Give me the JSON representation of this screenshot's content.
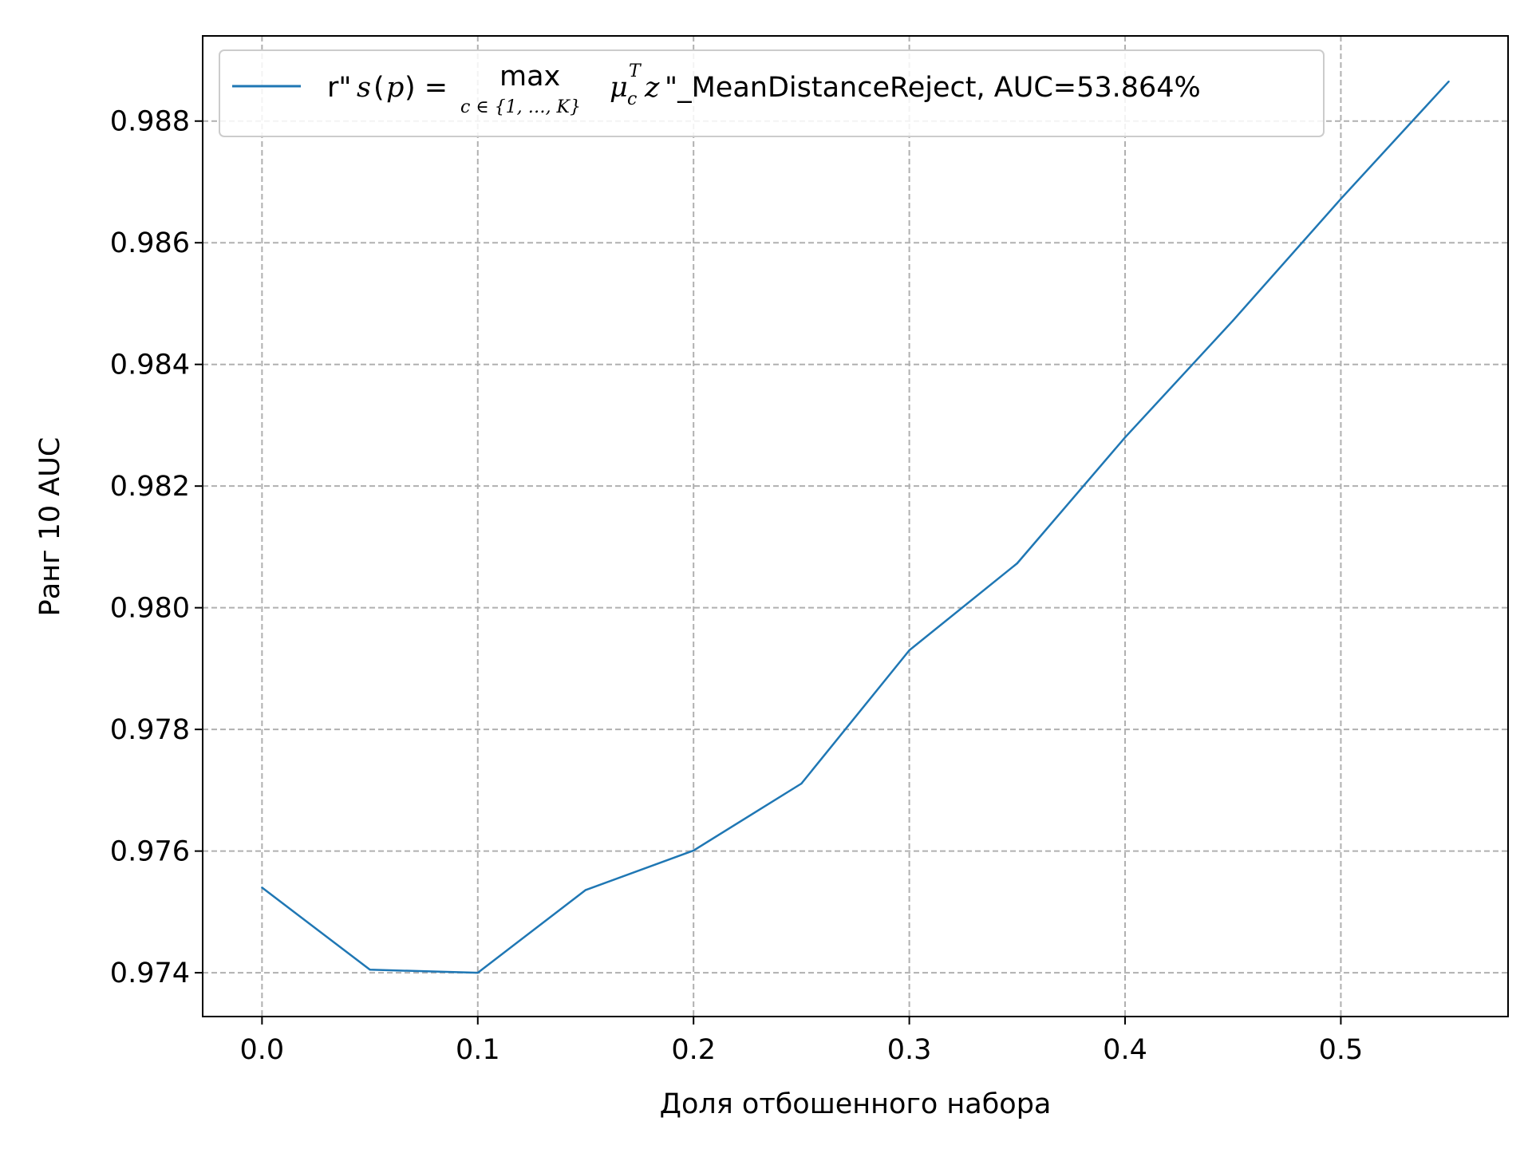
{
  "chart_data": {
    "type": "line",
    "title": "",
    "xlabel": "Доля отбошенного набора",
    "ylabel": "Ранг 10 AUC",
    "xlim": [
      -0.0275,
      0.5775
    ],
    "ylim": [
      0.97328,
      0.9894
    ],
    "xticks": [
      0.0,
      0.1,
      0.2,
      0.3,
      0.4,
      0.5
    ],
    "xtick_labels": [
      "0.0",
      "0.1",
      "0.2",
      "0.3",
      "0.4",
      "0.5"
    ],
    "yticks": [
      0.974,
      0.976,
      0.978,
      0.98,
      0.982,
      0.984,
      0.986,
      0.988
    ],
    "ytick_labels": [
      "0.974",
      "0.976",
      "0.978",
      "0.980",
      "0.982",
      "0.984",
      "0.986",
      "0.988"
    ],
    "grid": true,
    "legend_position": "top-left",
    "series": [
      {
        "name": "r\"s(p) = max_{c∈{1,…,K}} μ_c^T z\"_MeanDistanceReject, AUC=53.864%",
        "color": "#1f77b4",
        "x": [
          0.0,
          0.05,
          0.1,
          0.15,
          0.2,
          0.25,
          0.3,
          0.35,
          0.4,
          0.45,
          0.5,
          0.55
        ],
        "y": [
          0.9754,
          0.97405,
          0.974,
          0.97536,
          0.97601,
          0.97711,
          0.9793,
          0.98073,
          0.9828,
          0.98472,
          0.98672,
          0.98865
        ]
      }
    ]
  },
  "legend": {
    "prefix": "r\"",
    "s": "s",
    "p_open": "(",
    "p": "p",
    "p_close": ") =",
    "max": "max",
    "max_sub": "c ∈ {1, …, K}",
    "mu": "μ",
    "mu_sub": "c",
    "mu_sup": "T",
    "z": "z",
    "suffix": "\"_MeanDistanceReject, AUC=53.864%"
  }
}
